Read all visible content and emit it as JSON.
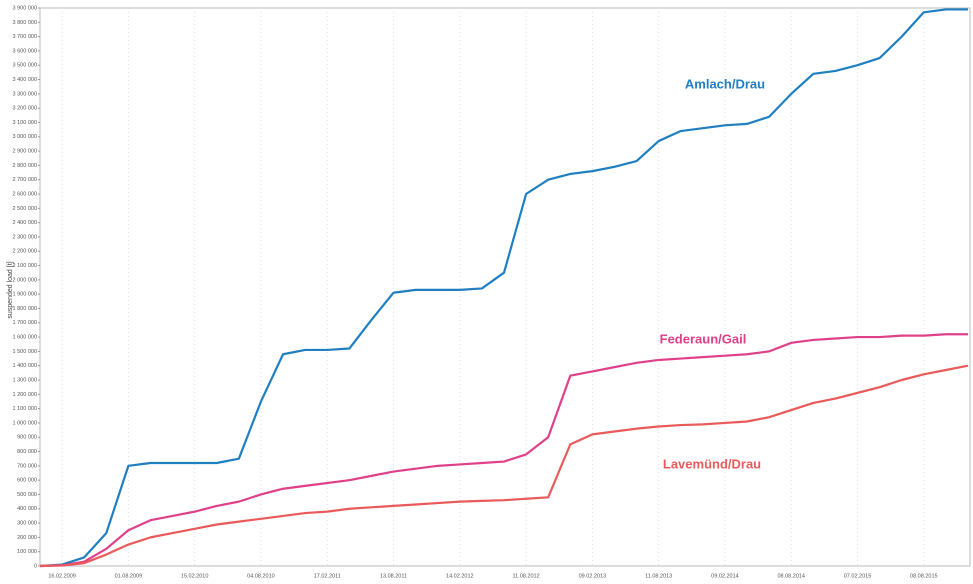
{
  "chart_data": {
    "type": "line",
    "y_label": "suspended load [t]",
    "annotations": [
      "Amlach/Drau",
      "Federaun/Gail",
      "Lavemünd/Drau"
    ],
    "categories": [
      null,
      "16.02.2009",
      null,
      null,
      "01.08.2009",
      null,
      null,
      "15.02.2010",
      null,
      null,
      "04.08.2010",
      null,
      null,
      "17.02.2011",
      null,
      null,
      "13.08.2011",
      null,
      null,
      "14.02.2012",
      null,
      null,
      "11.08.2012",
      null,
      null,
      "09.02.2013",
      null,
      null,
      "11.08.2013",
      null,
      null,
      "09.02.2014",
      null,
      null,
      "08.08.2014",
      null,
      null,
      "07.02.2015",
      null,
      null,
      "08.08.2015",
      null,
      null
    ],
    "series": [
      {
        "name": "Amlach/Drau",
        "color": "#1f7fc0",
        "values": [
          0,
          10000,
          60000,
          230000,
          700000,
          720000,
          720000,
          720000,
          720000,
          750000,
          1150000,
          1480000,
          1510000,
          1510000,
          1520000,
          1720000,
          1910000,
          1930000,
          1930000,
          1930000,
          1940000,
          2050000,
          2600000,
          2700000,
          2740000,
          2760000,
          2790000,
          2830000,
          2970000,
          3040000,
          3060000,
          3080000,
          3090000,
          3140000,
          3300000,
          3440000,
          3460000,
          3500000,
          3550000,
          3700000,
          3870000,
          3890000,
          3890000
        ]
      },
      {
        "name": "Federaun/Gail",
        "color": "#e0408a",
        "values": [
          0,
          5000,
          30000,
          120000,
          250000,
          320000,
          350000,
          380000,
          420000,
          450000,
          500000,
          540000,
          560000,
          580000,
          600000,
          630000,
          660000,
          680000,
          700000,
          710000,
          720000,
          730000,
          780000,
          900000,
          1330000,
          1360000,
          1390000,
          1420000,
          1440000,
          1450000,
          1460000,
          1470000,
          1480000,
          1500000,
          1560000,
          1580000,
          1590000,
          1600000,
          1600000,
          1610000,
          1610000,
          1620000,
          1620000
        ]
      },
      {
        "name": "Lavemünd/Drau",
        "color": "#ea5a5a",
        "values": [
          0,
          3000,
          20000,
          80000,
          150000,
          200000,
          230000,
          260000,
          290000,
          310000,
          330000,
          350000,
          370000,
          380000,
          400000,
          410000,
          420000,
          430000,
          440000,
          450000,
          455000,
          460000,
          470000,
          480000,
          850000,
          920000,
          940000,
          960000,
          975000,
          985000,
          990000,
          1000000,
          1010000,
          1040000,
          1090000,
          1140000,
          1170000,
          1210000,
          1250000,
          1300000,
          1340000,
          1370000,
          1400000
        ]
      }
    ],
    "ylim": [
      0,
      3900000
    ],
    "yticks": [
      0,
      {
        "value": 100000,
        "label": "100 000"
      },
      {
        "value": 200000,
        "label": "200 000"
      },
      {
        "value": 300000,
        "label": "300 000"
      },
      {
        "value": 400000,
        "label": "400 000"
      },
      {
        "value": 500000,
        "label": "500 000"
      },
      {
        "value": 600000,
        "label": "600 000"
      },
      {
        "value": 700000,
        "label": "700 000"
      },
      {
        "value": 800000,
        "label": "800 000"
      },
      {
        "value": 900000,
        "label": "900 000"
      },
      {
        "value": 1000000,
        "label": "1 000 000"
      },
      {
        "value": 1100000,
        "label": "1 100 000"
      },
      {
        "value": 1200000,
        "label": "1 200 000"
      },
      {
        "value": 1300000,
        "label": "1 300 000"
      },
      {
        "value": 1400000,
        "label": "1 400 000"
      },
      {
        "value": 1500000,
        "label": "1 500 000"
      },
      {
        "value": 1600000,
        "label": "1 600 000"
      },
      {
        "value": 1700000,
        "label": "1 700 000"
      },
      {
        "value": 1800000,
        "label": "1 800 000"
      },
      {
        "value": 1900000,
        "label": "1 900 000"
      },
      {
        "value": 2000000,
        "label": "2 000 000"
      },
      {
        "value": 2100000,
        "label": "2 100 000"
      },
      {
        "value": 2200000,
        "label": "2 200 000"
      },
      {
        "value": 2300000,
        "label": "2 300 000"
      },
      {
        "value": 2400000,
        "label": "2 400 000"
      },
      {
        "value": 2500000,
        "label": "2 500 000"
      },
      {
        "value": 2600000,
        "label": "2 600 000"
      },
      {
        "value": 2700000,
        "label": "2 700 000"
      },
      {
        "value": 2800000,
        "label": "2 800 000"
      },
      {
        "value": 2900000,
        "label": "2 900 000"
      },
      {
        "value": 3000000,
        "label": "3 000 000"
      },
      {
        "value": 3100000,
        "label": "3 100 000"
      },
      {
        "value": 3200000,
        "label": "3 200 000"
      },
      {
        "value": 3300000,
        "label": "3 300 000"
      },
      {
        "value": 3400000,
        "label": "3 400 000"
      },
      {
        "value": 3500000,
        "label": "3 500 000"
      },
      {
        "value": 3600000,
        "label": "3 600 000"
      },
      {
        "value": 3700000,
        "label": "3 700 000"
      },
      {
        "value": 3800000,
        "label": "3 800 000"
      },
      {
        "value": 3900000,
        "label": "3 900 000"
      }
    ],
    "grid": true
  }
}
